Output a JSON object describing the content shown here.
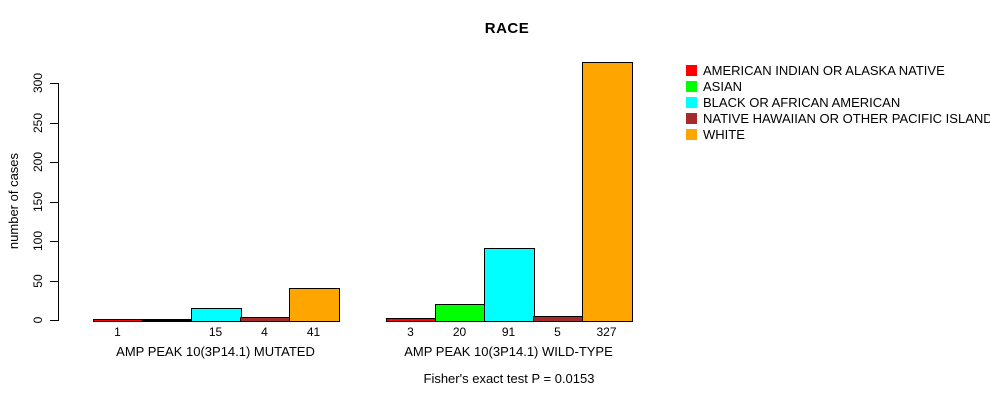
{
  "chart_data": {
    "type": "bar",
    "title": "RACE",
    "ylabel": "number of cases",
    "ylim": [
      0,
      300
    ],
    "yticks": [
      0,
      50,
      100,
      150,
      200,
      250,
      300
    ],
    "grid": false,
    "legend_position": "top-right",
    "categories": [
      "AMERICAN INDIAN OR ALASKA NATIVE",
      "ASIAN",
      "BLACK OR AFRICAN AMERICAN",
      "NATIVE HAWAIIAN OR OTHER PACIFIC ISLANDER",
      "WHITE"
    ],
    "colors": [
      "#FF0000",
      "#00FF00",
      "#00FFFF",
      "#A52A2A",
      "#FFA500"
    ],
    "groups": [
      "AMP PEAK 10(3P14.1) MUTATED",
      "AMP PEAK 10(3P14.1) WILD-TYPE"
    ],
    "series": [
      {
        "name": "AMP PEAK 10(3P14.1) MUTATED",
        "values": [
          1,
          0,
          15,
          4,
          41
        ]
      },
      {
        "name": "AMP PEAK 10(3P14.1) WILD-TYPE",
        "values": [
          3,
          20,
          91,
          5,
          327
        ]
      }
    ],
    "bar_value_labels_shown": [
      "1",
      "15",
      "4",
      "41",
      "3",
      "20",
      "91",
      "5",
      "327"
    ],
    "annotation": "Fisher's exact test P = 0.0153"
  }
}
